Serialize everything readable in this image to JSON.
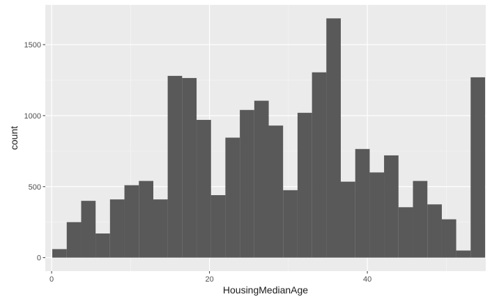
{
  "chart_data": {
    "type": "bar",
    "title": "",
    "xlabel": "HousingMedianAge",
    "ylabel": "count",
    "xlim": [
      -0.8,
      55.0
    ],
    "ylim": [
      -95,
      1780
    ],
    "bin_width": 1.83,
    "bins": [
      {
        "x": 1.0,
        "count": 60
      },
      {
        "x": 2.83,
        "count": 250
      },
      {
        "x": 4.66,
        "count": 400
      },
      {
        "x": 6.48,
        "count": 170
      },
      {
        "x": 8.31,
        "count": 410
      },
      {
        "x": 10.14,
        "count": 510
      },
      {
        "x": 11.97,
        "count": 540
      },
      {
        "x": 13.79,
        "count": 410
      },
      {
        "x": 15.62,
        "count": 1280
      },
      {
        "x": 17.45,
        "count": 1265
      },
      {
        "x": 19.28,
        "count": 970
      },
      {
        "x": 21.1,
        "count": 440
      },
      {
        "x": 22.93,
        "count": 845
      },
      {
        "x": 24.76,
        "count": 1040
      },
      {
        "x": 26.59,
        "count": 1105
      },
      {
        "x": 28.41,
        "count": 930
      },
      {
        "x": 30.24,
        "count": 475
      },
      {
        "x": 32.07,
        "count": 1020
      },
      {
        "x": 33.9,
        "count": 1305
      },
      {
        "x": 35.72,
        "count": 1685
      },
      {
        "x": 37.55,
        "count": 535
      },
      {
        "x": 39.38,
        "count": 765
      },
      {
        "x": 41.21,
        "count": 600
      },
      {
        "x": 43.03,
        "count": 720
      },
      {
        "x": 44.86,
        "count": 355
      },
      {
        "x": 46.69,
        "count": 540
      },
      {
        "x": 48.52,
        "count": 375
      },
      {
        "x": 50.34,
        "count": 270
      },
      {
        "x": 52.17,
        "count": 50
      },
      {
        "x": 54.0,
        "count": 1270
      }
    ],
    "x_ticks": [
      0,
      20,
      40
    ],
    "x_minor": [
      10,
      30,
      50
    ],
    "x_tick_labels": [
      "0",
      "20",
      "40"
    ],
    "y_ticks": [
      0,
      500,
      1000,
      1500
    ],
    "y_minor": [
      250,
      750,
      1250
    ],
    "y_tick_labels": [
      "0",
      "500",
      "1000",
      "1500"
    ],
    "grid": true,
    "colors": {
      "panel_bg": "#ebebeb",
      "grid_major": "#ffffff",
      "grid_minor": "#f5f5f5",
      "bar_fill": "#595959",
      "tick": "#333333"
    }
  }
}
